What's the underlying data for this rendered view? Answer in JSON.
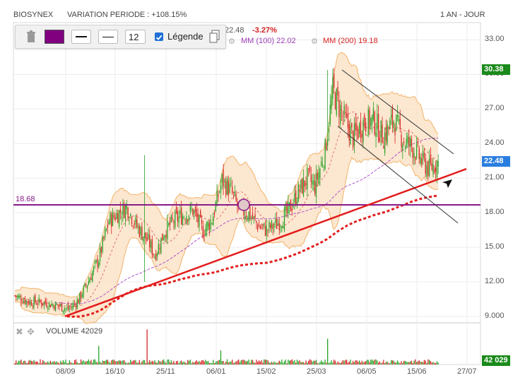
{
  "header": {
    "symbol": "BIOSYNEX",
    "variation": "VARIATION PERIODE : +108.15%",
    "period": "1 AN - JOUR"
  },
  "toolbar": {
    "color_swatch": "#800080",
    "font_size": "12",
    "legend_checked": true,
    "legend_label": "Légende",
    "icons": [
      "trash-icon",
      "copy-icon"
    ]
  },
  "legend": {
    "last_partial": "22.48",
    "change": "-3.27%",
    "mm100_label": "MM (100)",
    "mm100_value": "22.02",
    "mm200_label": "MM (200)",
    "mm200_value": "19.18",
    "icons": [
      "gear-icon",
      "gear-icon"
    ]
  },
  "price_tags": {
    "high_marker": "30.38",
    "last_price": "22.48",
    "volume_last": "42 029"
  },
  "horizontal_line_label": "18.68",
  "volume_panel": {
    "label": "VOLUME",
    "value": "42029",
    "icons": [
      "close-icon",
      "move-icon"
    ]
  },
  "colors": {
    "up": "#22a122",
    "down": "#d42020",
    "trend": "#e31c1c",
    "hline": "#8a1a8a",
    "band_fill": "#fbe1c4",
    "band_line": "#f3b46a",
    "mm100": "#b355c9",
    "channel": "#333333",
    "tag_green": "#1a8a1a",
    "tag_blue": "#2a7ee0"
  },
  "chart_data": {
    "type": "candlestick",
    "title": "BIOSYNEX",
    "ylim": [
      8.5,
      34.5
    ],
    "y_ticks": [
      "9.000",
      "12.00",
      "15.00",
      "18.00",
      "21.00",
      "24.00",
      "27.00",
      "30.00",
      "33.00"
    ],
    "x_ticks": [
      "08/09",
      "16/10",
      "25/11",
      "06/01",
      "15/02",
      "25/03",
      "06/05",
      "15/06",
      "27/07"
    ],
    "horizontal_line": 18.68,
    "anchors": [
      [
        0,
        10.8
      ],
      [
        10,
        10.3
      ],
      [
        22,
        10.2
      ],
      [
        35,
        9.9
      ],
      [
        42,
        9.6
      ],
      [
        50,
        10.4
      ],
      [
        58,
        12.1
      ],
      [
        66,
        14.0
      ],
      [
        74,
        17.3
      ],
      [
        82,
        18.0
      ],
      [
        88,
        18.5
      ],
      [
        96,
        16.8
      ],
      [
        105,
        15.5
      ],
      [
        110,
        14.3
      ],
      [
        118,
        16.4
      ],
      [
        126,
        17.4
      ],
      [
        134,
        17.9
      ],
      [
        140,
        18.2
      ],
      [
        148,
        16.4
      ],
      [
        155,
        17.4
      ],
      [
        163,
        20.8
      ],
      [
        170,
        19.9
      ],
      [
        176,
        18.3
      ],
      [
        184,
        17.9
      ],
      [
        192,
        16.8
      ],
      [
        198,
        16.5
      ],
      [
        206,
        17.0
      ],
      [
        214,
        17.9
      ],
      [
        222,
        19.6
      ],
      [
        230,
        21.0
      ],
      [
        236,
        20.3
      ],
      [
        244,
        23.4
      ],
      [
        250,
        28.6
      ],
      [
        258,
        26.4
      ],
      [
        266,
        24.5
      ],
      [
        274,
        25.8
      ],
      [
        282,
        26.0
      ],
      [
        290,
        24.6
      ],
      [
        298,
        26.1
      ],
      [
        306,
        24.2
      ],
      [
        312,
        23.8
      ],
      [
        320,
        22.5
      ],
      [
        326,
        21.8
      ],
      [
        333,
        22.48
      ]
    ],
    "spikes": [
      [
        102,
        23.0,
        12.0
      ],
      [
        246,
        30.4,
        24.5
      ]
    ],
    "volume_spikes": [
      [
        104,
        3.0
      ],
      [
        246,
        2.2
      ],
      [
        66,
        1.6
      ],
      [
        162,
        1.2
      ]
    ],
    "series": [
      {
        "name": "MM (100)",
        "last": 22.02
      },
      {
        "name": "MM (200)",
        "last": 19.18
      }
    ],
    "volume": {
      "last": 42029
    }
  }
}
